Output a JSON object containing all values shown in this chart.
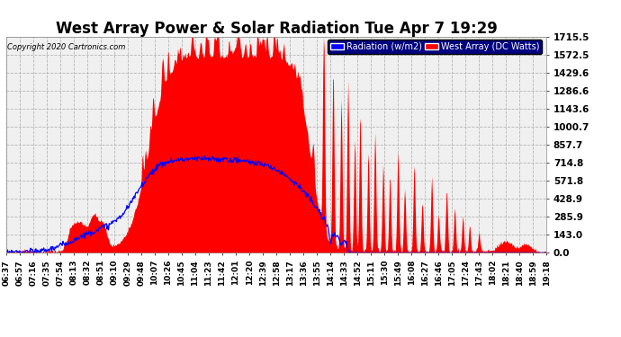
{
  "title": "West Array Power & Solar Radiation Tue Apr 7 19:29",
  "copyright": "Copyright 2020 Cartronics.com",
  "legend_labels": [
    "Radiation (w/m2)",
    "West Array (DC Watts)"
  ],
  "legend_colors_hex": [
    "#0000ff",
    "#ff0000"
  ],
  "y_ticks": [
    0.0,
    143.0,
    285.9,
    428.9,
    571.8,
    714.8,
    857.7,
    1000.7,
    1143.6,
    1286.6,
    1429.6,
    1572.5,
    1715.5
  ],
  "y_max": 1715.5,
  "y_min": 0.0,
  "background_color": "#ffffff",
  "plot_bg_color": "#f0f0f0",
  "grid_color": "#b0b0b0",
  "title_fontsize": 12,
  "x_labels": [
    "06:37",
    "06:57",
    "07:16",
    "07:35",
    "07:54",
    "08:13",
    "08:32",
    "08:51",
    "09:10",
    "09:29",
    "09:48",
    "10:07",
    "10:26",
    "10:45",
    "11:04",
    "11:23",
    "11:42",
    "12:01",
    "12:20",
    "12:39",
    "12:58",
    "13:17",
    "13:36",
    "13:55",
    "14:14",
    "14:33",
    "14:52",
    "15:11",
    "15:30",
    "15:49",
    "16:08",
    "16:27",
    "16:46",
    "17:05",
    "17:24",
    "17:43",
    "18:02",
    "18:21",
    "18:40",
    "18:59",
    "19:18"
  ]
}
